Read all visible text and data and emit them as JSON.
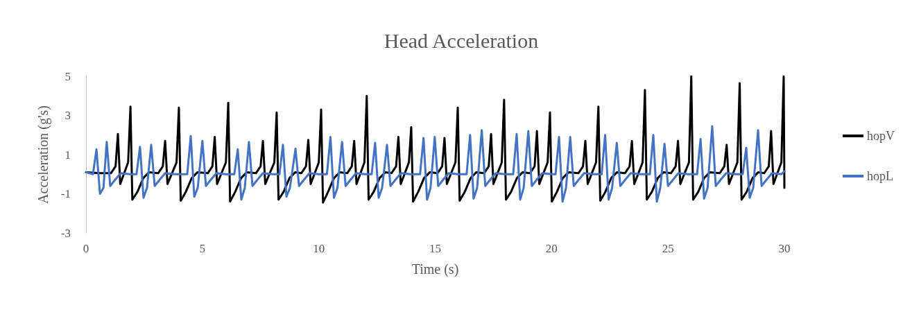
{
  "chart_data": {
    "type": "line",
    "title": "Head Acceleration",
    "xlabel": "Time (s)",
    "ylabel": "Acceleration (g's)",
    "xlim": [
      0,
      30
    ],
    "xticks": [
      0,
      5,
      10,
      15,
      20,
      25,
      30
    ],
    "ylim": [
      -3,
      5
    ],
    "yticks": [
      -3,
      -1,
      1,
      3,
      5
    ],
    "grid": false,
    "legend": "right",
    "marker": "none",
    "line_style": "solid",
    "series": [
      {
        "name": "hopV",
        "color": "#000000",
        "x": [
          0,
          0.6,
          1.07,
          1.27,
          1.37,
          1.47,
          1.81,
          1.91,
          1.99,
          2.21,
          2.46,
          2.71,
          3.1,
          3.3,
          3.4,
          3.5,
          3.89,
          3.99,
          4.07,
          4.29,
          4.54,
          4.79,
          5.23,
          5.43,
          5.53,
          5.63,
          6.01,
          6.11,
          6.19,
          6.41,
          6.66,
          6.91,
          7.3,
          7.5,
          7.6,
          7.7,
          8.09,
          8.19,
          8.27,
          8.49,
          8.74,
          8.99,
          9.25,
          9.45,
          9.55,
          9.65,
          10,
          10.1,
          10.18,
          10.4,
          10.65,
          10.9,
          11.22,
          11.42,
          11.52,
          11.62,
          11.96,
          12.06,
          12.14,
          12.36,
          12.61,
          12.86,
          13.12,
          13.32,
          13.42,
          13.52,
          13.87,
          13.97,
          14.05,
          14.27,
          14.52,
          14.77,
          15.1,
          15.3,
          15.4,
          15.5,
          15.87,
          15.97,
          16.05,
          16.27,
          16.52,
          16.77,
          17.1,
          17.3,
          17.4,
          17.5,
          17.86,
          17.96,
          18.04,
          18.26,
          18.51,
          18.76,
          19.07,
          19.27,
          19.37,
          19.47,
          19.83,
          19.93,
          20.01,
          20.23,
          20.48,
          20.73,
          21.15,
          21.35,
          21.45,
          21.55,
          21.91,
          22.01,
          22.09,
          22.31,
          22.56,
          22.81,
          23.15,
          23.35,
          23.45,
          23.55,
          23.91,
          24.01,
          24.09,
          24.31,
          24.56,
          24.81,
          25.13,
          25.33,
          25.43,
          25.53,
          25.9,
          26,
          26.08,
          26.3,
          26.55,
          26.8,
          27.22,
          27.42,
          27.52,
          27.62,
          27.98,
          28.08,
          28.16,
          28.38,
          28.63,
          28.88,
          29.13,
          29.33,
          29.43,
          29.53,
          29.87,
          29.97,
          30
        ],
        "values": [
          0.1,
          0.05,
          0.05,
          0.4,
          2.05,
          -0.5,
          0.6,
          3.45,
          -1.3,
          -0.9,
          -0.2,
          0.1,
          0.05,
          0.4,
          1.7,
          -0.5,
          0.6,
          3.4,
          -1.35,
          -0.9,
          -0.2,
          0.1,
          0.05,
          0.4,
          1.9,
          -0.5,
          0.6,
          3.65,
          -1.4,
          -0.9,
          -0.2,
          0.1,
          0.05,
          0.4,
          1.7,
          -0.5,
          0.6,
          3.15,
          -1.3,
          -0.9,
          -0.2,
          0.1,
          0.05,
          0.4,
          1.75,
          -0.5,
          0.6,
          3.3,
          -1.45,
          -0.9,
          -0.2,
          0.1,
          0.05,
          0.4,
          1.7,
          -0.5,
          0.6,
          4,
          -1.3,
          -0.9,
          -0.2,
          0.1,
          0.05,
          0.4,
          1.9,
          -0.5,
          0.6,
          2.4,
          -1.4,
          -0.9,
          -0.2,
          0.1,
          0.05,
          0.4,
          1.85,
          -0.5,
          0.6,
          3.4,
          -1.35,
          -0.9,
          -0.2,
          0.1,
          0.05,
          0.4,
          2.05,
          -0.5,
          0.6,
          3.8,
          -1.3,
          -0.9,
          -0.2,
          0.1,
          0.05,
          0.4,
          2.2,
          -0.5,
          0.6,
          3.15,
          -1.4,
          -0.9,
          -0.2,
          0.1,
          0.05,
          0.4,
          1.7,
          -0.5,
          0.6,
          3.45,
          -1.35,
          -0.9,
          -0.2,
          0.1,
          0.05,
          0.4,
          1.7,
          -0.5,
          0.6,
          4.3,
          -1.3,
          -0.9,
          -0.2,
          0.1,
          0.05,
          0.4,
          1.7,
          -0.5,
          0.6,
          5,
          -1.3,
          -0.9,
          -0.2,
          0.1,
          0.05,
          0.4,
          1.5,
          -0.5,
          0.6,
          4.65,
          -1.3,
          -0.9,
          -0.2,
          0.1,
          0.05,
          0.4,
          2.2,
          -0.5,
          0.6,
          5,
          -0.7
        ]
      },
      {
        "name": "hopL",
        "color": "#4472c4",
        "x": [
          0,
          0.3,
          0.45,
          0.6,
          0.75,
          0.89,
          1.04,
          1.24,
          1.49,
          1.89,
          2.17,
          2.32,
          2.47,
          2.62,
          2.8,
          2.95,
          3.15,
          3.4,
          3.8,
          4.35,
          4.5,
          4.65,
          4.8,
          5,
          5.15,
          5.35,
          5.6,
          6,
          6.37,
          6.52,
          6.67,
          6.82,
          7,
          7.15,
          7.35,
          7.6,
          8,
          8.31,
          8.46,
          8.61,
          8.76,
          9,
          9.15,
          9.35,
          9.6,
          10,
          10.35,
          10.5,
          10.65,
          10.8,
          11,
          11.15,
          11.35,
          11.6,
          12,
          12.27,
          12.42,
          12.57,
          12.72,
          12.93,
          13.08,
          13.28,
          13.53,
          13.93,
          14.35,
          14.5,
          14.65,
          14.8,
          14.98,
          15.13,
          15.33,
          15.58,
          15.98,
          16.35,
          16.5,
          16.65,
          16.8,
          17,
          17.15,
          17.35,
          17.6,
          18,
          18.35,
          18.5,
          18.65,
          18.8,
          19,
          19.15,
          19.35,
          19.6,
          20,
          20.17,
          20.32,
          20.47,
          20.62,
          20.8,
          20.95,
          21.15,
          21.4,
          21.8,
          22.15,
          22.3,
          22.45,
          22.6,
          22.8,
          22.95,
          23.15,
          23.4,
          23.8,
          24.22,
          24.37,
          24.52,
          24.67,
          24.85,
          25,
          25.2,
          25.45,
          25.85,
          26.25,
          26.4,
          26.55,
          26.7,
          26.9,
          27.05,
          27.25,
          27.5,
          27.9,
          28.21,
          28.36,
          28.51,
          28.66,
          28.87,
          29.02,
          29.22,
          29.47,
          29.87,
          30
        ],
        "values": [
          0.1,
          0,
          1.27,
          -1,
          -0.7,
          1.65,
          -0.6,
          -0.3,
          0.05,
          0,
          0,
          1.4,
          -1.2,
          -0.7,
          1.5,
          -0.6,
          -0.3,
          0.05,
          0,
          0,
          1.95,
          -1.15,
          -0.7,
          1.7,
          -0.6,
          -0.3,
          0.05,
          0,
          0,
          1.27,
          -1.3,
          -0.7,
          1.65,
          -0.6,
          -0.3,
          0.05,
          0,
          0,
          1.5,
          -1.15,
          -0.7,
          1.3,
          -0.6,
          -0.3,
          0.05,
          0,
          0,
          1.9,
          -1.2,
          -0.7,
          1.65,
          -0.6,
          -0.3,
          0.05,
          0,
          0,
          1.6,
          -1.2,
          -0.7,
          1.5,
          -0.6,
          -0.3,
          0.05,
          0,
          0,
          1.85,
          -1.3,
          -0.7,
          1.9,
          -0.6,
          -0.3,
          0.05,
          0,
          0,
          2,
          -1.25,
          -0.7,
          2.25,
          -0.6,
          -0.3,
          0.05,
          0,
          0,
          2.05,
          -1.3,
          -0.7,
          2.2,
          -0.6,
          -0.3,
          0.05,
          0,
          0,
          1.9,
          -1.4,
          -0.7,
          1.9,
          -0.6,
          -0.3,
          0.05,
          0,
          0,
          2,
          -1.3,
          -0.7,
          1.6,
          -0.6,
          -0.3,
          0.05,
          0,
          0,
          2,
          -1.4,
          -0.7,
          1.55,
          -0.6,
          -0.3,
          0.05,
          0,
          0,
          1.8,
          -1.25,
          -0.7,
          2.45,
          -0.6,
          -0.3,
          0.05,
          0,
          0,
          1.35,
          -1.2,
          -0.7,
          2.25,
          -0.6,
          -0.3,
          0.05,
          0,
          0.15
        ]
      }
    ]
  }
}
